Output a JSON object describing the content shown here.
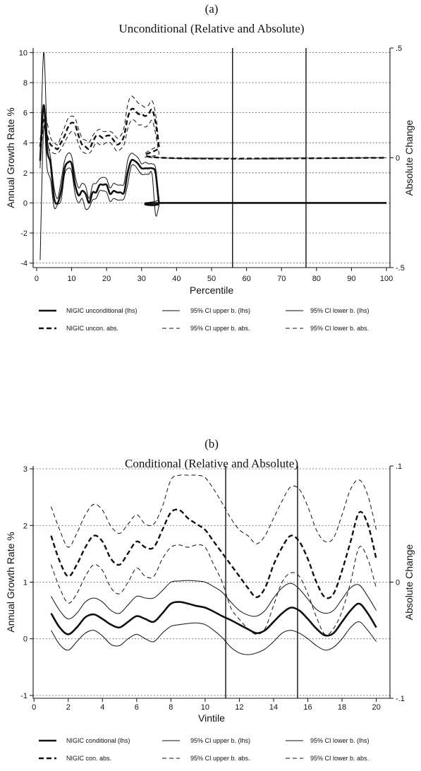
{
  "chart_data": [
    {
      "type": "line",
      "panel_label": "(a)",
      "title": "Unconditional (Relative and Absolute)",
      "xlabel": "Percentile",
      "ylabel": "Annual Growth Rate %",
      "y2label": "Absolute Change",
      "xlim": [
        -1,
        101
      ],
      "ylim": [
        -4.3,
        10.3
      ],
      "y2lim": [
        -0.5,
        0.5
      ],
      "x_ticks": [
        "0",
        "10",
        "20",
        "30",
        "40",
        "50",
        "60",
        "70",
        "80",
        "90",
        "100"
      ],
      "y_ticks": [
        "-4",
        "-2",
        "0",
        "2",
        "4",
        "6",
        "8",
        "10"
      ],
      "y2_ticks": [
        ".5",
        "0",
        "-.5"
      ],
      "grid": "horizontal dashed",
      "vlines": [
        56,
        77
      ],
      "legend_position": "bottom",
      "legend": [
        "NIGIC unconditional (lhs)",
        "95% CI upper b. (lhs)",
        "95% CI lower b. (lhs)",
        "NIGIC uncon. abs.",
        "95% CI upper b. abs.",
        "95% CI lower b. abs."
      ],
      "series": [
        {
          "axis": "left",
          "style": "thick",
          "x": [
            1,
            2,
            3,
            4,
            5,
            6,
            7,
            8,
            9,
            10,
            11,
            12,
            13,
            14,
            15,
            16,
            17,
            18,
            19,
            20,
            21,
            22,
            23,
            24,
            25,
            26,
            27,
            28,
            29,
            30,
            31,
            32,
            33,
            34,
            35,
            36,
            100
          ],
          "values": [
            2.8,
            6.5,
            3.5,
            2.6,
            0.3,
            0.0,
            0.8,
            2.3,
            2.7,
            2.6,
            1.2,
            0.5,
            0.8,
            0.6,
            0.0,
            0.7,
            0.7,
            1.2,
            1.2,
            1.2,
            0.6,
            0.8,
            0.7,
            0.7,
            0.7,
            2.0,
            2.8,
            2.8,
            2.6,
            2.3,
            2.3,
            2.3,
            2.3,
            2.0,
            0.0,
            0.0,
            0.0
          ]
        },
        {
          "axis": "left",
          "style": "thin",
          "x": [
            1,
            2,
            3,
            4,
            5,
            6,
            7,
            8,
            9,
            10,
            11,
            12,
            13,
            14,
            15,
            16,
            17,
            18,
            19,
            20,
            21,
            22,
            23,
            24,
            25,
            26,
            27,
            28,
            29,
            30,
            31,
            32,
            33,
            34,
            35,
            36,
            100
          ],
          "values": [
            2.3,
            10.0,
            4.5,
            3.0,
            1.0,
            0.3,
            1.5,
            2.8,
            3.3,
            3.1,
            1.8,
            1.0,
            1.3,
            1.1,
            0.3,
            1.2,
            1.3,
            1.6,
            1.7,
            1.6,
            1.0,
            1.3,
            1.2,
            1.2,
            1.3,
            2.8,
            3.3,
            3.2,
            3.0,
            2.6,
            2.7,
            2.6,
            2.6,
            2.3,
            0.3,
            0.0,
            0.0
          ]
        },
        {
          "axis": "left",
          "style": "thin",
          "x": [
            1,
            2,
            3,
            4,
            5,
            6,
            7,
            8,
            9,
            10,
            11,
            12,
            13,
            14,
            15,
            16,
            17,
            18,
            19,
            20,
            21,
            22,
            23,
            24,
            25,
            26,
            27,
            28,
            29,
            30,
            31,
            32,
            33,
            34,
            35,
            36,
            100
          ],
          "values": [
            -3.8,
            5.0,
            2.3,
            1.5,
            -0.3,
            -0.1,
            0.2,
            1.9,
            2.3,
            2.1,
            0.6,
            0.0,
            0.3,
            -0.4,
            -0.3,
            0.2,
            0.3,
            0.8,
            0.8,
            0.7,
            0.1,
            0.3,
            0.2,
            0.2,
            0.3,
            1.2,
            2.4,
            2.5,
            2.2,
            1.9,
            1.9,
            1.9,
            1.9,
            -0.8,
            -0.2,
            0.0,
            0.0
          ]
        },
        {
          "axis": "right",
          "style": "thickdash",
          "x": [
            1,
            2,
            3,
            4,
            5,
            6,
            7,
            8,
            9,
            10,
            11,
            12,
            13,
            14,
            15,
            16,
            17,
            18,
            19,
            20,
            21,
            22,
            23,
            24,
            25,
            26,
            27,
            28,
            29,
            30,
            31,
            32,
            33,
            34,
            35,
            36,
            100
          ],
          "values": [
            0.05,
            0.18,
            0.1,
            0.06,
            0.05,
            0.04,
            0.07,
            0.1,
            0.14,
            0.16,
            0.15,
            0.1,
            0.06,
            0.05,
            0.04,
            0.07,
            0.1,
            0.1,
            0.09,
            0.1,
            0.1,
            0.08,
            0.06,
            0.07,
            0.1,
            0.18,
            0.22,
            0.22,
            0.2,
            0.2,
            0.19,
            0.2,
            0.22,
            0.16,
            0.05,
            0.0,
            0.0
          ]
        },
        {
          "axis": "right",
          "style": "thindash",
          "x": [
            1,
            2,
            3,
            4,
            5,
            6,
            7,
            8,
            9,
            10,
            11,
            12,
            13,
            14,
            15,
            16,
            17,
            18,
            19,
            20,
            21,
            22,
            23,
            24,
            25,
            26,
            27,
            28,
            29,
            30,
            31,
            32,
            33,
            34,
            35,
            36,
            100
          ],
          "values": [
            0.08,
            0.21,
            0.16,
            0.09,
            0.07,
            0.06,
            0.1,
            0.14,
            0.18,
            0.19,
            0.18,
            0.13,
            0.09,
            0.08,
            0.07,
            0.1,
            0.12,
            0.13,
            0.12,
            0.12,
            0.12,
            0.11,
            0.09,
            0.1,
            0.14,
            0.24,
            0.28,
            0.27,
            0.25,
            0.24,
            0.23,
            0.24,
            0.26,
            0.2,
            0.07,
            0.0,
            0.0
          ]
        },
        {
          "axis": "right",
          "style": "thindash",
          "x": [
            1,
            2,
            3,
            4,
            5,
            6,
            7,
            8,
            9,
            10,
            11,
            12,
            13,
            14,
            15,
            16,
            17,
            18,
            19,
            20,
            21,
            22,
            23,
            24,
            25,
            26,
            27,
            28,
            29,
            30,
            31,
            32,
            33,
            34,
            35,
            36,
            100
          ],
          "values": [
            -0.02,
            0.14,
            0.06,
            0.03,
            0.02,
            0.02,
            0.04,
            0.07,
            0.1,
            0.12,
            0.11,
            0.06,
            0.03,
            0.02,
            0.02,
            0.04,
            0.07,
            0.06,
            0.06,
            0.07,
            0.07,
            0.05,
            0.03,
            0.04,
            0.06,
            0.13,
            0.17,
            0.17,
            0.15,
            0.15,
            0.14,
            0.15,
            0.17,
            0.11,
            0.02,
            0.0,
            0.0
          ]
        }
      ]
    },
    {
      "type": "line",
      "panel_label": "(b)",
      "title": "Conditional (Relative and Absolute)",
      "xlabel": "Vintile",
      "ylabel": "Annual Growth Rate %",
      "y2label": "Absolute Change",
      "xlim": [
        -0.05,
        20.8
      ],
      "ylim": [
        -1.05,
        3.05
      ],
      "y2lim": [
        -0.1,
        0.1
      ],
      "x_ticks": [
        "0",
        "2",
        "4",
        "6",
        "8",
        "10",
        "12",
        "14",
        "16",
        "18",
        "20"
      ],
      "y_ticks": [
        "-1",
        "0",
        "1",
        "2",
        "3"
      ],
      "y2_ticks": [
        ".1",
        "0",
        "-.1"
      ],
      "grid": "horizontal dashed",
      "vlines": [
        11.2,
        15.4
      ],
      "legend_position": "bottom",
      "legend": [
        "NIGIC conditional (lhs)",
        "95% CI upper b. (lhs)",
        "95% CI lower b. (lhs)",
        "NIGIC con. abs.",
        "95% CI upper b. abs.",
        "95% CI lower b. abs."
      ],
      "series": [
        {
          "axis": "left",
          "style": "thick",
          "x": [
            1,
            1.5,
            2,
            2.5,
            3,
            3.5,
            4,
            4.5,
            5,
            5.5,
            6,
            6.5,
            7,
            7.5,
            8,
            8.5,
            9,
            9.5,
            10,
            10.5,
            11,
            11.5,
            12,
            12.5,
            13,
            13.5,
            14,
            14.5,
            15,
            15.5,
            16,
            16.5,
            17,
            17.5,
            18,
            18.5,
            19,
            19.5,
            20
          ],
          "values": [
            0.45,
            0.2,
            0.08,
            0.2,
            0.38,
            0.43,
            0.35,
            0.25,
            0.2,
            0.3,
            0.4,
            0.35,
            0.3,
            0.45,
            0.62,
            0.65,
            0.62,
            0.58,
            0.55,
            0.48,
            0.4,
            0.33,
            0.25,
            0.17,
            0.1,
            0.15,
            0.3,
            0.45,
            0.55,
            0.5,
            0.35,
            0.18,
            0.06,
            0.1,
            0.3,
            0.5,
            0.62,
            0.45,
            0.2
          ]
        },
        {
          "axis": "left",
          "style": "thin",
          "x": [
            1,
            1.5,
            2,
            2.5,
            3,
            3.5,
            4,
            4.5,
            5,
            5.5,
            6,
            6.5,
            7,
            7.5,
            8,
            8.5,
            9,
            9.5,
            10,
            10.5,
            11,
            11.5,
            12,
            12.5,
            13,
            13.5,
            14,
            14.5,
            15,
            15.5,
            16,
            16.5,
            17,
            17.5,
            18,
            18.5,
            19,
            19.5,
            20
          ],
          "values": [
            0.75,
            0.5,
            0.35,
            0.45,
            0.65,
            0.72,
            0.65,
            0.5,
            0.45,
            0.6,
            0.75,
            0.72,
            0.72,
            0.85,
            1.0,
            1.02,
            1.03,
            1.02,
            1.0,
            0.92,
            0.82,
            0.65,
            0.5,
            0.42,
            0.4,
            0.5,
            0.72,
            0.9,
            0.98,
            0.88,
            0.7,
            0.52,
            0.45,
            0.5,
            0.7,
            0.9,
            0.95,
            0.75,
            0.5
          ]
        },
        {
          "axis": "left",
          "style": "thin",
          "x": [
            1,
            1.5,
            2,
            2.5,
            3,
            3.5,
            4,
            4.5,
            5,
            5.5,
            6,
            6.5,
            7,
            7.5,
            8,
            8.5,
            9,
            9.5,
            10,
            10.5,
            11,
            11.5,
            12,
            12.5,
            13,
            13.5,
            14,
            14.5,
            15,
            15.5,
            16,
            16.5,
            17,
            17.5,
            18,
            18.5,
            19,
            19.5,
            20
          ],
          "values": [
            0.15,
            -0.1,
            -0.2,
            -0.05,
            0.1,
            0.15,
            0.05,
            -0.1,
            -0.12,
            0.0,
            0.08,
            0.0,
            -0.05,
            0.1,
            0.22,
            0.25,
            0.27,
            0.28,
            0.25,
            0.15,
            0.02,
            -0.15,
            -0.25,
            -0.28,
            -0.25,
            -0.18,
            -0.05,
            0.1,
            0.15,
            0.1,
            0.0,
            -0.12,
            -0.2,
            -0.15,
            0.0,
            0.2,
            0.3,
            0.15,
            -0.05
          ]
        },
        {
          "axis": "right",
          "style": "thickdash",
          "x": [
            1,
            1.5,
            2,
            2.5,
            3,
            3.5,
            4,
            4.5,
            5,
            5.5,
            6,
            6.5,
            7,
            7.5,
            8,
            8.5,
            9,
            9.5,
            10,
            10.5,
            11,
            11.5,
            12,
            12.5,
            13,
            13.5,
            14,
            14.5,
            15,
            15.5,
            16,
            16.5,
            17,
            17.5,
            18,
            18.5,
            19,
            19.5,
            20
          ],
          "values": [
            0.04,
            0.018,
            0.005,
            0.015,
            0.03,
            0.04,
            0.035,
            0.02,
            0.015,
            0.025,
            0.035,
            0.03,
            0.03,
            0.045,
            0.06,
            0.062,
            0.055,
            0.05,
            0.045,
            0.035,
            0.025,
            0.015,
            0.005,
            -0.005,
            -0.013,
            -0.005,
            0.015,
            0.03,
            0.04,
            0.035,
            0.02,
            0.0,
            -0.013,
            -0.01,
            0.01,
            0.035,
            0.06,
            0.05,
            0.02
          ]
        },
        {
          "axis": "right",
          "style": "thindash",
          "x": [
            1,
            1.5,
            2,
            2.5,
            3,
            3.5,
            4,
            4.5,
            5,
            5.5,
            6,
            6.5,
            7,
            7.5,
            8,
            8.5,
            9,
            9.5,
            10,
            10.5,
            11,
            11.5,
            12,
            12.5,
            13,
            13.5,
            14,
            14.5,
            15,
            15.5,
            16,
            16.5,
            17,
            17.5,
            18,
            18.5,
            19,
            19.5,
            20
          ],
          "values": [
            0.065,
            0.045,
            0.03,
            0.042,
            0.058,
            0.067,
            0.062,
            0.048,
            0.042,
            0.05,
            0.058,
            0.05,
            0.05,
            0.065,
            0.088,
            0.092,
            0.092,
            0.092,
            0.09,
            0.08,
            0.068,
            0.055,
            0.045,
            0.04,
            0.033,
            0.04,
            0.055,
            0.07,
            0.082,
            0.08,
            0.065,
            0.045,
            0.035,
            0.038,
            0.058,
            0.08,
            0.088,
            0.075,
            0.045
          ]
        },
        {
          "axis": "right",
          "style": "thindash",
          "x": [
            1,
            1.5,
            2,
            2.5,
            3,
            3.5,
            4,
            4.5,
            5,
            5.5,
            6,
            6.5,
            7,
            7.5,
            8,
            8.5,
            9,
            9.5,
            10,
            10.5,
            11,
            11.5,
            12,
            12.5,
            13,
            13.5,
            14,
            14.5,
            15,
            15.5,
            16,
            16.5,
            17,
            17.5,
            18,
            18.5,
            19,
            19.5,
            20
          ],
          "values": [
            0.015,
            -0.005,
            -0.018,
            -0.01,
            0.005,
            0.015,
            0.01,
            -0.005,
            -0.01,
            0.0,
            0.012,
            0.005,
            0.005,
            0.02,
            0.03,
            0.032,
            0.03,
            0.032,
            0.03,
            0.015,
            0.0,
            -0.022,
            -0.032,
            -0.04,
            -0.045,
            -0.04,
            -0.02,
            0.0,
            0.008,
            0.005,
            -0.01,
            -0.03,
            -0.045,
            -0.04,
            -0.025,
            0.0,
            0.03,
            0.02,
            -0.005
          ]
        }
      ]
    }
  ]
}
